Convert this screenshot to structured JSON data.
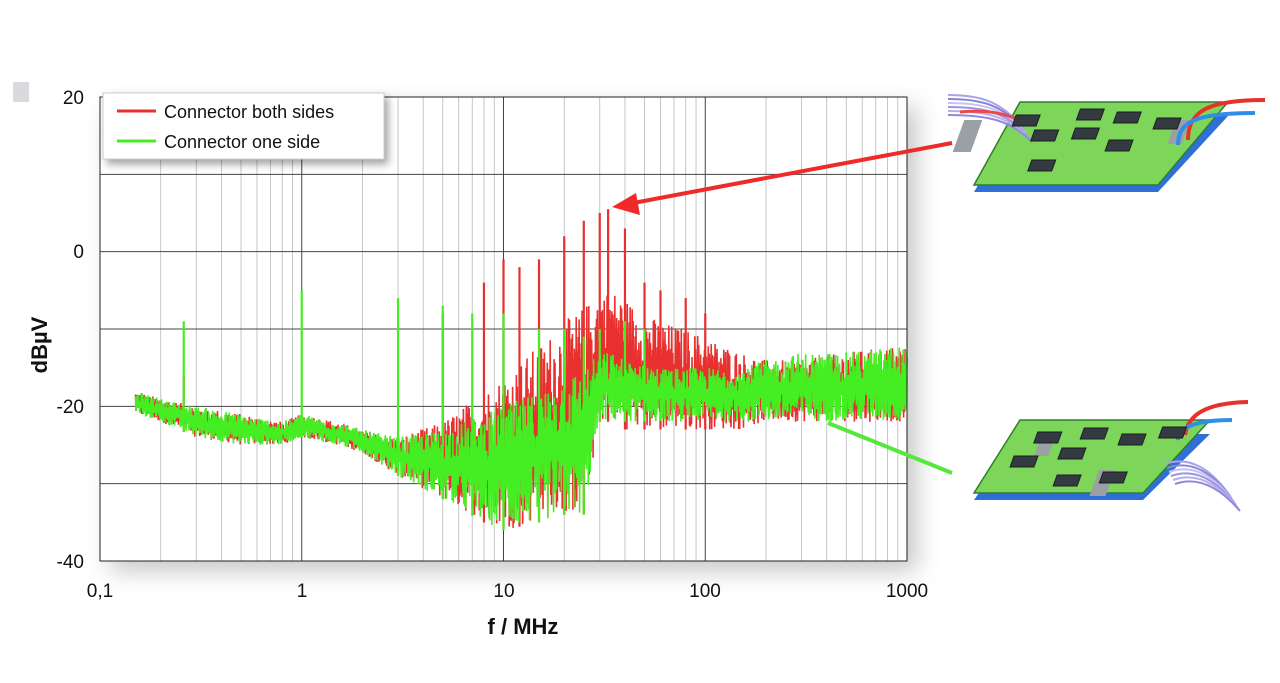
{
  "chart_data": {
    "type": "line",
    "title": "",
    "xlabel": "f / MHz",
    "ylabel": "dBµV",
    "x_scale": "log",
    "xlim": [
      0.1,
      1000
    ],
    "ylim": [
      -40,
      20
    ],
    "x_ticks": [
      0.1,
      1,
      10,
      100,
      1000
    ],
    "x_tick_labels": [
      "0,1",
      "1",
      "10",
      "100",
      "1000"
    ],
    "y_ticks": [
      -40,
      -20,
      0,
      20
    ],
    "y_tick_labels": [
      "-40",
      "-20",
      "0",
      "20"
    ],
    "grid": true,
    "legend_position": "top-left",
    "series": [
      {
        "name": "Connector both sides",
        "color": "#e8302f",
        "envelope_x": [
          0.15,
          0.2,
          0.3,
          0.5,
          0.8,
          1,
          1.5,
          2,
          3,
          5,
          8,
          10,
          15,
          20,
          25,
          30,
          35,
          40,
          50,
          60,
          80,
          100,
          150,
          200,
          300,
          500,
          1000
        ],
        "envelope_upper": [
          -18,
          -19,
          -20,
          -21,
          -22,
          -21,
          -22,
          -23,
          -24,
          -22,
          -18,
          -16,
          -12,
          -9,
          -7,
          -5,
          -5,
          -6,
          -8,
          -9,
          -10,
          -11,
          -13,
          -14,
          -14,
          -13,
          -12
        ],
        "envelope_lower": [
          -21,
          -22,
          -24,
          -25,
          -25,
          -24,
          -25,
          -26,
          -29,
          -32,
          -35,
          -36,
          -35,
          -34,
          -34,
          -22,
          -22,
          -23,
          -23,
          -23,
          -23,
          -23,
          -23,
          -22,
          -22,
          -22,
          -22
        ],
        "peaks_x": [
          0.26,
          5,
          8,
          10,
          12,
          15,
          20,
          25,
          30,
          33,
          40,
          50,
          60,
          80,
          100
        ],
        "peaks_y": [
          -16,
          -8,
          -4,
          -1,
          -2,
          -1,
          2,
          4,
          5,
          5.5,
          3,
          -4,
          -5,
          -6,
          -8
        ]
      },
      {
        "name": "Connector one side",
        "color": "#44ee22",
        "envelope_x": [
          0.15,
          0.2,
          0.3,
          0.5,
          0.8,
          1,
          1.5,
          2,
          3,
          5,
          8,
          10,
          15,
          20,
          25,
          30,
          35,
          40,
          50,
          60,
          80,
          100,
          150,
          200,
          300,
          500,
          1000
        ],
        "envelope_upper": [
          -18,
          -19,
          -20,
          -21,
          -22,
          -21,
          -22,
          -23,
          -24,
          -23,
          -21,
          -20,
          -18,
          -16,
          -15,
          -13,
          -13,
          -14,
          -14,
          -15,
          -15,
          -15,
          -15,
          -14,
          -13,
          -13,
          -12
        ],
        "envelope_lower": [
          -21,
          -22,
          -24,
          -25,
          -25,
          -24,
          -25,
          -26,
          -29,
          -32,
          -35,
          -36,
          -35,
          -34,
          -34,
          -22,
          -22,
          -22,
          -22,
          -22,
          -22,
          -22,
          -22,
          -22,
          -22,
          -22,
          -22
        ],
        "peaks_x": [
          0.26,
          1,
          3,
          5,
          7,
          10,
          15,
          20,
          25,
          30,
          40,
          50
        ],
        "peaks_y": [
          -9,
          -5,
          -6,
          -7,
          -8,
          -8,
          -10,
          -10,
          -11,
          -10,
          -9,
          -10
        ]
      }
    ]
  }
}
